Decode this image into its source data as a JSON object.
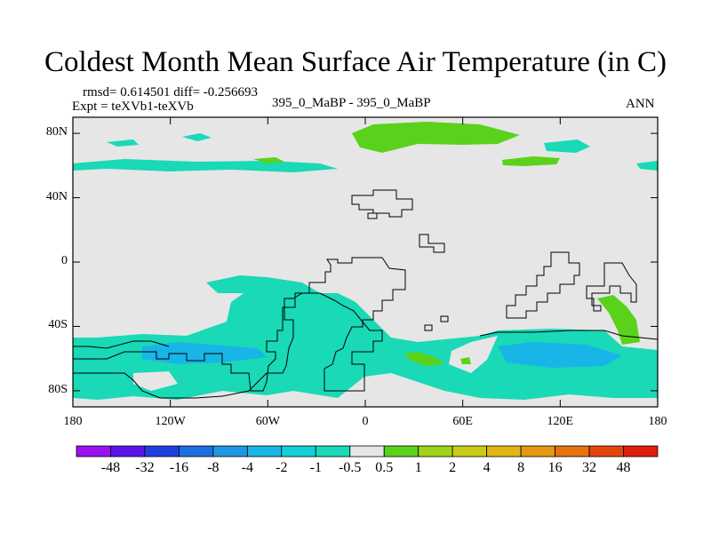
{
  "chart_data": {
    "type": "heatmap",
    "title": "Coldest Month Mean Surface Air Temperature (in C)",
    "subtitle_left_line1": "rmsd= 0.614501  diff= -0.256693",
    "subtitle_left_line2": "Expt = teXVb1-teXVb",
    "subtitle_center": "395_0_MaBP - 395_0_MaBP",
    "subtitle_right": "ANN",
    "rmsd": 0.614501,
    "diff": -0.256693,
    "xlim": [
      -180,
      180
    ],
    "ylim": [
      -90,
      90
    ],
    "x_ticks": [
      {
        "value": -180,
        "label": "180"
      },
      {
        "value": -120,
        "label": "120W"
      },
      {
        "value": -60,
        "label": "60W"
      },
      {
        "value": 0,
        "label": "0"
      },
      {
        "value": 60,
        "label": "60E"
      },
      {
        "value": 120,
        "label": "120E"
      },
      {
        "value": 180,
        "label": "180"
      }
    ],
    "y_ticks": [
      {
        "value": 80,
        "label": "80N"
      },
      {
        "value": 40,
        "label": "40N"
      },
      {
        "value": 0,
        "label": "0"
      },
      {
        "value": -40,
        "label": "40S"
      },
      {
        "value": -80,
        "label": "80S"
      }
    ],
    "colorbar": {
      "levels": [
        "-48",
        "-32",
        "-16",
        "-8",
        "-4",
        "-2",
        "-1",
        "-0.5",
        "0.5",
        "1",
        "2",
        "4",
        "8",
        "16",
        "32",
        "48"
      ],
      "colors": [
        "#9d11f0",
        "#5b15e8",
        "#1f3fdc",
        "#1d6fe0",
        "#1f97e3",
        "#17b6e6",
        "#13cfd9",
        "#19d9b6",
        "#e6e6e6",
        "#5ad21c",
        "#9fd21a",
        "#c8cc17",
        "#e0b614",
        "#e59812",
        "#e7700f",
        "#e4450d",
        "#df1f0b"
      ]
    }
  }
}
